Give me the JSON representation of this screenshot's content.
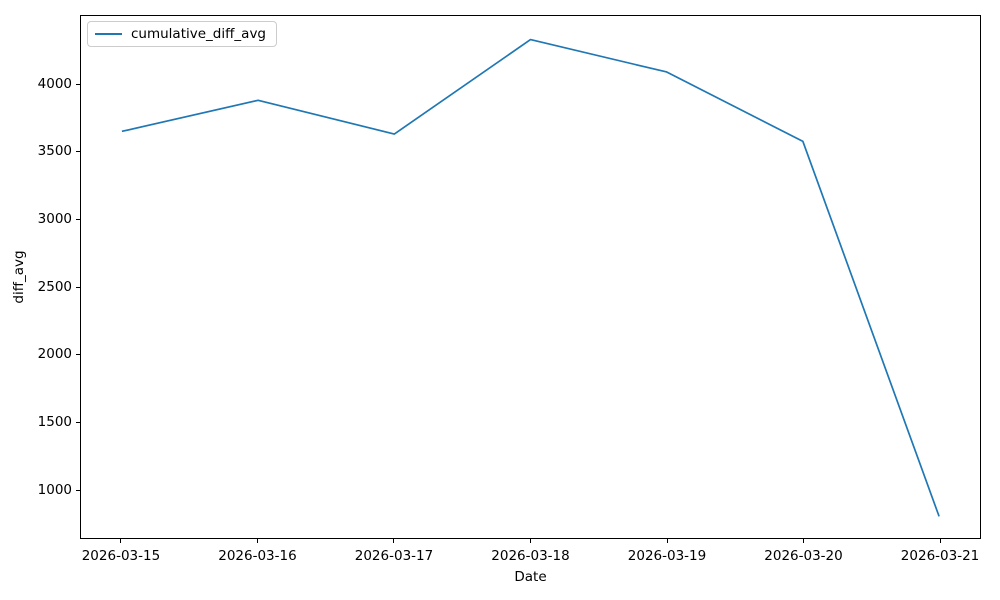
{
  "chart_data": {
    "type": "line",
    "title": "",
    "xlabel": "Date",
    "ylabel": "diff_avg",
    "x": [
      "2026-03-15",
      "2026-03-16",
      "2026-03-17",
      "2026-03-18",
      "2026-03-19",
      "2026-03-20",
      "2026-03-21"
    ],
    "series": [
      {
        "name": "cumulative_diff_avg",
        "color": "#1f77b4",
        "values": [
          3655,
          3885,
          3635,
          4335,
          4095,
          3580,
          800
        ]
      }
    ],
    "y_ticks": [
      1000,
      1500,
      2000,
      2500,
      3000,
      3500,
      4000
    ],
    "xlim": [
      -0.3,
      6.3
    ],
    "ylim": [
      640,
      4510
    ],
    "grid": false,
    "legend_position": "upper left"
  }
}
